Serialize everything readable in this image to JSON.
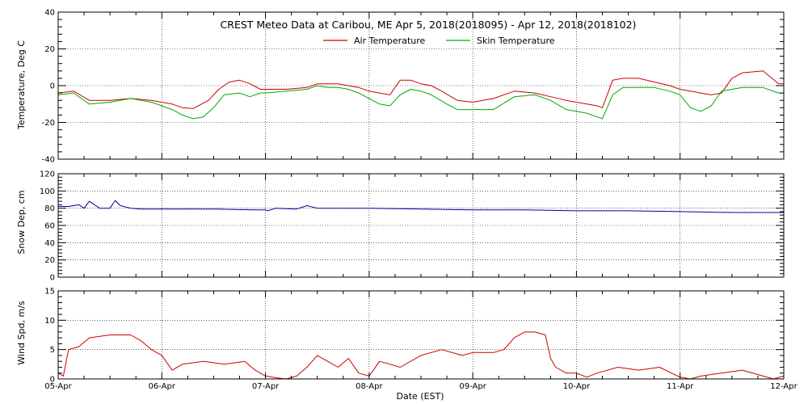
{
  "colors": {
    "air": "#cc0000",
    "skin": "#00aa00",
    "snow": "#000099",
    "wind": "#cc0000"
  },
  "chart_data": [
    {
      "type": "line",
      "title": "CREST Meteo Data at Caribou, ME   Apr  5, 2018(2018095) - Apr 12, 2018(2018102)",
      "ylabel": "Temperature, Deg C",
      "xlim": [
        0,
        7
      ],
      "ylim": [
        -40,
        40
      ],
      "yticks": [
        -40,
        -20,
        0,
        20,
        40
      ],
      "legend": "top-center",
      "series": [
        {
          "name": "Air Temperature",
          "color": "#cc0000",
          "x": [
            0,
            0.15,
            0.3,
            0.5,
            0.7,
            0.9,
            1.1,
            1.2,
            1.3,
            1.45,
            1.55,
            1.65,
            1.75,
            1.85,
            1.95,
            2.0,
            2.2,
            2.4,
            2.5,
            2.6,
            2.7,
            2.8,
            2.9,
            3.0,
            3.1,
            3.2,
            3.3,
            3.4,
            3.5,
            3.6,
            3.7,
            3.85,
            4.0,
            4.2,
            4.4,
            4.6,
            4.75,
            4.9,
            5.0,
            5.1,
            5.2,
            5.25,
            5.35,
            5.45,
            5.6,
            5.75,
            5.9,
            6.0,
            6.1,
            6.2,
            6.3,
            6.4,
            6.5,
            6.6,
            6.8,
            6.95,
            7.0
          ],
          "y": [
            -4,
            -3,
            -8,
            -8,
            -7,
            -8,
            -10,
            -12,
            -12.5,
            -8,
            -2,
            2,
            3,
            1,
            -2,
            -2,
            -2,
            -1,
            1,
            1,
            1,
            0,
            -1,
            -3,
            -4,
            -5,
            3,
            3,
            1,
            0,
            -3,
            -8,
            -9,
            -7,
            -3,
            -4,
            -6,
            -8,
            -9,
            -10,
            -11,
            -12,
            3,
            4,
            4,
            2,
            0,
            -2,
            -3,
            -4,
            -5,
            -4,
            4,
            7,
            8,
            1,
            1
          ]
        },
        {
          "name": "Skin Temperature",
          "color": "#00aa00",
          "x": [
            0,
            0.15,
            0.3,
            0.5,
            0.7,
            0.9,
            1.1,
            1.2,
            1.3,
            1.4,
            1.5,
            1.6,
            1.75,
            1.85,
            1.95,
            2.0,
            2.2,
            2.4,
            2.5,
            2.6,
            2.7,
            2.8,
            2.9,
            3.0,
            3.1,
            3.2,
            3.3,
            3.4,
            3.5,
            3.6,
            3.75,
            3.85,
            4.0,
            4.2,
            4.4,
            4.6,
            4.75,
            4.9,
            5.0,
            5.1,
            5.2,
            5.25,
            5.35,
            5.45,
            5.6,
            5.75,
            5.9,
            6.0,
            6.1,
            6.2,
            6.3,
            6.4,
            6.5,
            6.6,
            6.8,
            6.95,
            7.0
          ],
          "y": [
            -5,
            -4,
            -10,
            -9,
            -7,
            -9,
            -13,
            -16,
            -18,
            -17,
            -12,
            -5,
            -4,
            -6,
            -4,
            -4,
            -3,
            -2,
            0,
            -1,
            -1,
            -2,
            -4,
            -7,
            -10,
            -11,
            -5,
            -2,
            -3,
            -5,
            -10,
            -13,
            -13,
            -13,
            -6,
            -5,
            -8,
            -13,
            -14,
            -15,
            -17,
            -18,
            -5,
            -1,
            -1,
            -1,
            -3,
            -5,
            -12,
            -14,
            -11,
            -3,
            -2,
            -1,
            -1,
            -4,
            -4
          ]
        }
      ]
    },
    {
      "type": "line",
      "ylabel": "Snow Dep, cm",
      "xlim": [
        0,
        7
      ],
      "ylim": [
        0,
        120
      ],
      "yticks": [
        0,
        20,
        40,
        60,
        80,
        100,
        120
      ],
      "series": [
        {
          "color": "#000099",
          "x": [
            0,
            0.1,
            0.2,
            0.25,
            0.3,
            0.4,
            0.5,
            0.55,
            0.6,
            0.7,
            0.8,
            1.0,
            1.5,
            1.9,
            2.0,
            2.02,
            2.1,
            2.3,
            2.4,
            2.5,
            3.0,
            3.5,
            4.0,
            4.5,
            5.0,
            5.5,
            6.0,
            6.5,
            7.0
          ],
          "y": [
            82,
            82,
            84,
            80,
            88,
            80,
            80,
            89,
            83,
            80,
            79,
            79,
            79,
            78,
            78,
            77,
            80,
            79,
            83,
            80,
            80,
            79,
            78,
            78,
            77,
            77,
            76,
            75,
            75
          ]
        }
      ]
    },
    {
      "type": "line",
      "ylabel": "Wind Spd, m/s",
      "xlabel": "Date (EST)",
      "xlim": [
        0,
        7
      ],
      "ylim": [
        0,
        15
      ],
      "yticks": [
        0,
        5,
        10,
        15
      ],
      "xtick_labels": [
        "05-Apr",
        "06-Apr",
        "07-Apr",
        "08-Apr",
        "09-Apr",
        "10-Apr",
        "11-Apr",
        "12-Apr"
      ],
      "series": [
        {
          "color": "#cc0000",
          "x": [
            0,
            0.05,
            0.1,
            0.2,
            0.3,
            0.5,
            0.7,
            0.8,
            0.9,
            1.0,
            1.1,
            1.2,
            1.4,
            1.6,
            1.8,
            1.9,
            2.0,
            2.1,
            2.2,
            2.3,
            2.4,
            2.5,
            2.6,
            2.7,
            2.8,
            2.9,
            3.0,
            3.1,
            3.2,
            3.3,
            3.5,
            3.7,
            3.9,
            4.0,
            4.2,
            4.3,
            4.4,
            4.5,
            4.6,
            4.7,
            4.75,
            4.8,
            4.9,
            5.0,
            5.1,
            5.2,
            5.4,
            5.6,
            5.8,
            6.0,
            6.1,
            6.2,
            6.4,
            6.6,
            6.8,
            6.9,
            7.0
          ],
          "y": [
            1,
            0.5,
            5,
            5.5,
            7,
            7.5,
            7.5,
            6.5,
            5,
            4,
            1.5,
            2.5,
            3,
            2.5,
            3,
            1.5,
            0.5,
            0.2,
            0,
            0.5,
            2,
            4,
            3,
            2,
            3.5,
            1,
            0.5,
            3,
            2.5,
            2,
            4,
            5,
            4,
            4.5,
            4.5,
            5,
            7,
            8,
            8,
            7.5,
            3.5,
            2,
            1,
            1,
            0.3,
            1,
            2,
            1.5,
            2,
            0.3,
            0,
            0.5,
            1,
            1.5,
            0.5,
            0,
            0.5
          ]
        }
      ]
    }
  ]
}
